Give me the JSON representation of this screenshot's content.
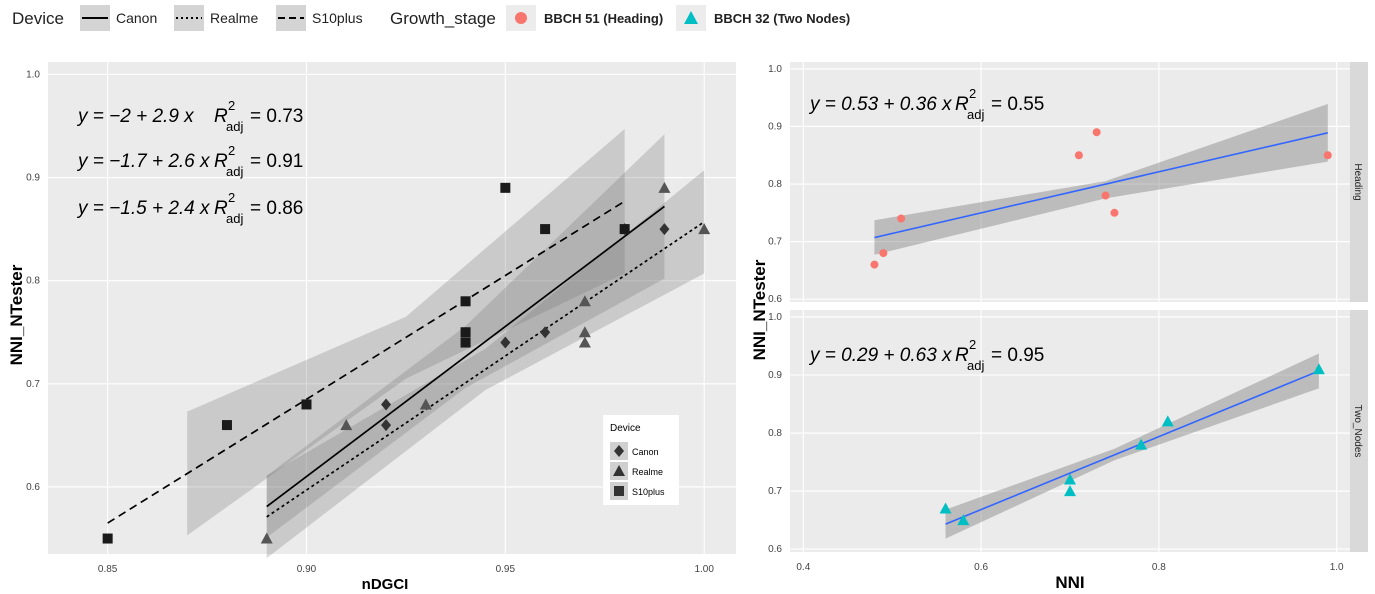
{
  "legend_top": {
    "device_title": "Device",
    "device_items": [
      {
        "label": "Canon",
        "dash": "solid"
      },
      {
        "label": "Realme",
        "dash": "dotted"
      },
      {
        "label": "S10plus",
        "dash": "dashed"
      }
    ],
    "growth_title": "Growth_stage",
    "growth_items": [
      {
        "label": "BBCH 51 (Heading)",
        "color": "#F8766D",
        "shape": "circle"
      },
      {
        "label": "BBCH 32 (Two Nodes)",
        "color": "#00BFC4",
        "shape": "triangle"
      }
    ]
  },
  "chart_data": [
    {
      "type": "scatter",
      "xlabel": "nDGCI",
      "ylabel": "NNI_NTester",
      "xlim": [
        0.835,
        1.008
      ],
      "ylim": [
        0.535,
        1.012
      ],
      "xticks": [
        "0.85",
        "0.90",
        "0.95",
        "1.00"
      ],
      "yticks": [
        "0.6",
        "0.7",
        "0.8",
        "0.9",
        "1.0"
      ],
      "grid": true,
      "legend": {
        "title": "Device",
        "placement": "bottom-right",
        "items": [
          {
            "label": "Canon",
            "shape": "diamond"
          },
          {
            "label": "Realme",
            "shape": "triangle"
          },
          {
            "label": "S10plus",
            "shape": "square"
          }
        ]
      },
      "equations": [
        {
          "a": "−2",
          "b": "2.9",
          "r2": "0.73"
        },
        {
          "a": "−1.7",
          "b": "2.6",
          "r2": "0.91"
        },
        {
          "a": "−1.5",
          "b": "2.4",
          "r2": "0.86"
        }
      ],
      "series": [
        {
          "name": "Canon",
          "shape": "diamond",
          "color": "#333333",
          "points": [
            [
              0.92,
              0.68
            ],
            [
              0.92,
              0.66
            ],
            [
              0.95,
              0.74
            ],
            [
              0.96,
              0.75
            ],
            [
              0.98,
              0.85
            ],
            [
              0.99,
              0.85
            ]
          ],
          "fit": {
            "x0": 0.89,
            "x1": 0.99,
            "y0": 0.581,
            "y1": 0.872,
            "dash": "solid"
          },
          "band": [
            [
              0.89,
              0.551,
              0.611
            ],
            [
              0.94,
              0.696,
              0.756
            ],
            [
              0.99,
              0.802,
              0.942
            ]
          ]
        },
        {
          "name": "Realme",
          "shape": "triangle",
          "color": "#555555",
          "points": [
            [
              0.89,
              0.55
            ],
            [
              0.91,
              0.66
            ],
            [
              0.93,
              0.68
            ],
            [
              0.97,
              0.78
            ],
            [
              0.97,
              0.75
            ],
            [
              0.97,
              0.74
            ],
            [
              0.99,
              0.89
            ],
            [
              1.0,
              0.85
            ]
          ],
          "fit": {
            "x0": 0.89,
            "x1": 1.0,
            "y0": 0.571,
            "y1": 0.857,
            "dash": "dotted"
          },
          "band": [
            [
              0.89,
              0.531,
              0.611
            ],
            [
              0.945,
              0.694,
              0.734
            ],
            [
              1.0,
              0.807,
              0.907
            ]
          ]
        },
        {
          "name": "S10plus",
          "shape": "square",
          "color": "#1a1a1a",
          "points": [
            [
              0.85,
              0.55
            ],
            [
              0.88,
              0.66
            ],
            [
              0.9,
              0.68
            ],
            [
              0.94,
              0.78
            ],
            [
              0.94,
              0.75
            ],
            [
              0.94,
              0.74
            ],
            [
              0.95,
              0.89
            ],
            [
              0.96,
              0.85
            ],
            [
              0.98,
              0.85
            ]
          ],
          "fit": {
            "x0": 0.85,
            "x1": 0.98,
            "y0": 0.565,
            "y1": 0.877,
            "dash": "dashed"
          },
          "band": [
            [
              0.87,
              0.553,
              0.673
            ],
            [
              0.925,
              0.705,
              0.765
            ],
            [
              0.98,
              0.807,
              0.947
            ]
          ]
        }
      ]
    },
    {
      "type": "scatter",
      "facet": "Heading",
      "xlim": [
        0.385,
        1.015
      ],
      "ylim": [
        0.595,
        1.012
      ],
      "xticks": [
        "0.4",
        "0.6",
        "0.8",
        "1.0"
      ],
      "yticks": [
        "0.6",
        "0.7",
        "0.8",
        "0.9",
        "1.0"
      ],
      "grid": true,
      "equation": {
        "a": "0.53",
        "b": "0.36",
        "r2": "0.55"
      },
      "color": "#F8766D",
      "points": [
        [
          0.48,
          0.66
        ],
        [
          0.49,
          0.68
        ],
        [
          0.51,
          0.74
        ],
        [
          0.71,
          0.85
        ],
        [
          0.73,
          0.89
        ],
        [
          0.74,
          0.78
        ],
        [
          0.75,
          0.75
        ],
        [
          0.99,
          0.85
        ]
      ],
      "fit": {
        "x0": 0.48,
        "x1": 0.99,
        "y0": 0.707,
        "y1": 0.889,
        "color": "#3366FF"
      },
      "band": [
        [
          0.48,
          0.677,
          0.737
        ],
        [
          0.74,
          0.775,
          0.805
        ],
        [
          0.99,
          0.839,
          0.939
        ]
      ]
    },
    {
      "type": "scatter",
      "facet": "Two_Nodes",
      "xlabel": "NNI",
      "ylabel": "NNI_NTester",
      "xlim": [
        0.385,
        1.015
      ],
      "ylim": [
        0.595,
        1.012
      ],
      "xticks": [
        "0.4",
        "0.6",
        "0.8",
        "1.0"
      ],
      "yticks": [
        "0.6",
        "0.7",
        "0.8",
        "0.9",
        "1.0"
      ],
      "grid": true,
      "equation": {
        "a": "0.29",
        "b": "0.63",
        "r2": "0.95"
      },
      "color": "#00BFC4",
      "points": [
        [
          0.56,
          0.67
        ],
        [
          0.58,
          0.65
        ],
        [
          0.7,
          0.72
        ],
        [
          0.7,
          0.7
        ],
        [
          0.78,
          0.78
        ],
        [
          0.81,
          0.82
        ],
        [
          0.98,
          0.91
        ]
      ],
      "fit": {
        "x0": 0.56,
        "x1": 0.98,
        "y0": 0.643,
        "y1": 0.907,
        "color": "#3366FF"
      },
      "band": [
        [
          0.56,
          0.618,
          0.668
        ],
        [
          0.75,
          0.753,
          0.773
        ],
        [
          0.98,
          0.877,
          0.937
        ]
      ]
    }
  ]
}
